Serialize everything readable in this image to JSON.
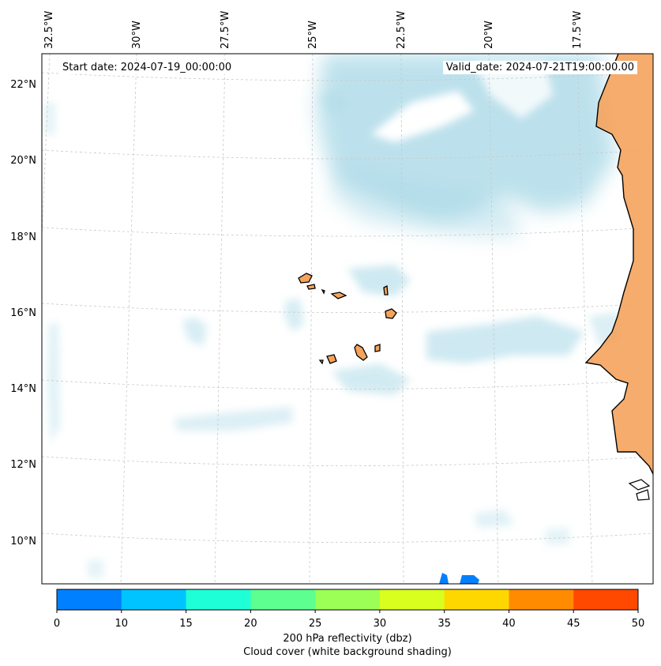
{
  "map": {
    "lon_labels": [
      "32.5°W",
      "30°W",
      "27.5°W",
      "25°W",
      "22.5°W",
      "20°W",
      "17.5°W"
    ],
    "lat_labels": [
      "22°N",
      "20°N",
      "18°N",
      "16°N",
      "14°N",
      "12°N",
      "10°N"
    ],
    "start_date": "Start date: 2024-07-19_00:00:00",
    "valid_date": "Valid_date: 2024-07-21T19:00:00.00"
  },
  "colorbar": {
    "ticks": [
      "0",
      "10",
      "15",
      "20",
      "25",
      "30",
      "35",
      "40",
      "45",
      "50"
    ],
    "colors": [
      "#0080ff",
      "#00c4ff",
      "#1effd8",
      "#5dff91",
      "#9cff56",
      "#d8ff1e",
      "#ffd700",
      "#ff8c00",
      "#ff4800"
    ],
    "label_line1": "200 hPa reflectivity (dbz)",
    "label_line2": "Cloud cover (white background shading)"
  },
  "colors": {
    "land": "#f5a35c",
    "cloud": "#a7d8e6",
    "coast": "#000000"
  }
}
